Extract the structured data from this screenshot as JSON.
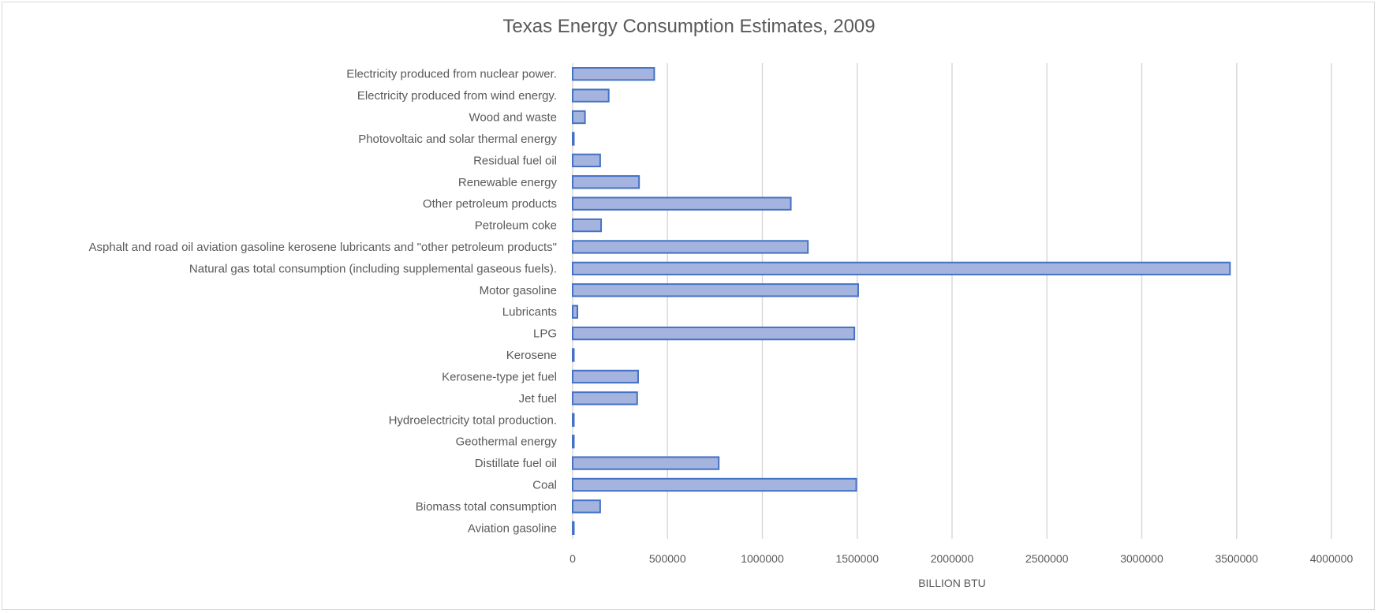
{
  "chart_data": {
    "type": "bar",
    "orientation": "horizontal",
    "title": "Texas Energy Consumption Estimates, 2009",
    "xlabel": "BILLION BTU",
    "ylabel": "",
    "xlim": [
      0,
      4000000
    ],
    "xticks": [
      0,
      500000,
      1000000,
      1500000,
      2000000,
      2500000,
      3000000,
      3500000,
      4000000
    ],
    "grid": true,
    "colors": {
      "bar_fill": "#a4b4de",
      "bar_stroke": "#4472c4",
      "grid": "#d9d9d9",
      "text": "#595959"
    },
    "categories": [
      "Electricity produced from nuclear power.",
      "Electricity produced from wind energy.",
      "Wood and waste",
      "Photovoltaic and solar thermal energy",
      "Residual fuel oil",
      "Renewable energy",
      "Other petroleum products",
      "Petroleum coke",
      "Asphalt and road oil aviation gasoline kerosene lubricants and \"other petroleum products\"",
      "Natural gas total consumption (including supplemental gaseous fuels).",
      "Motor gasoline",
      "Lubricants",
      "LPG",
      "Kerosene",
      "Kerosene-type jet fuel",
      "Jet fuel",
      "Hydroelectricity total production.",
      "Geothermal energy",
      "Distillate fuel oil",
      "Coal",
      "Biomass total consumption",
      "Aviation gasoline"
    ],
    "values": [
      430000,
      190000,
      65000,
      5000,
      145000,
      350000,
      1150000,
      150000,
      1240000,
      3465000,
      1505000,
      25000,
      1485000,
      5000,
      345000,
      340000,
      5000,
      5000,
      770000,
      1495000,
      145000,
      5000
    ]
  }
}
